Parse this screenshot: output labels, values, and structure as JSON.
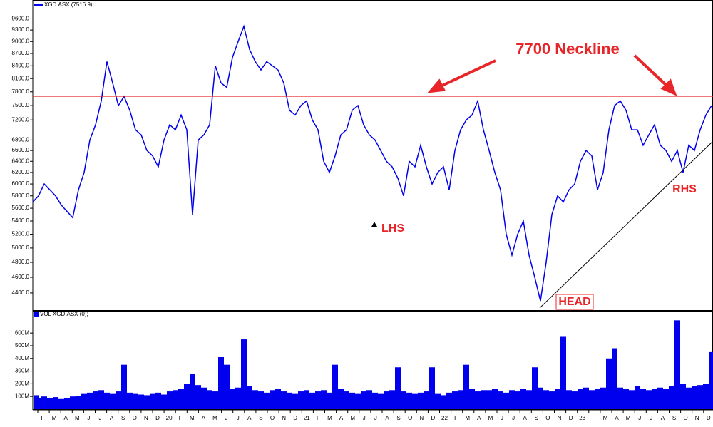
{
  "chart_data": [
    {
      "type": "line",
      "series": [
        {
          "name": "XGD.ASX (7516.9);",
          "color": "#0000ee",
          "values": [
            5700,
            5800,
            6000,
            5900,
            5800,
            5650,
            5550,
            5450,
            5900,
            6200,
            6800,
            7100,
            7600,
            8500,
            8000,
            7500,
            7700,
            7400,
            7000,
            6900,
            6600,
            6500,
            6300,
            6800,
            7100,
            7000,
            7300,
            7000,
            5500,
            6800,
            6900,
            7100,
            8400,
            8000,
            7900,
            8600,
            9000,
            9400,
            8800,
            8500,
            8300,
            8500,
            8400,
            8300,
            8000,
            7400,
            7300,
            7500,
            7600,
            7200,
            7000,
            6400,
            6200,
            6500,
            6900,
            7000,
            7400,
            7500,
            7100,
            6900,
            6800,
            6600,
            6400,
            6300,
            6100,
            5800,
            6400,
            6300,
            6700,
            6300,
            6000,
            6200,
            6300,
            5900,
            6600,
            7000,
            7200,
            7300,
            7600,
            7000,
            6600,
            6200,
            5900,
            5200,
            4900,
            5200,
            5400,
            4900,
            4600,
            4300,
            4800,
            5500,
            5800,
            5700,
            5900,
            6000,
            6400,
            6600,
            6500,
            5900,
            6200,
            7000,
            7500,
            7600,
            7400,
            7000,
            7000,
            6700,
            6900,
            7100,
            6700,
            6600,
            6400,
            6600,
            6200,
            6700,
            6600,
            7000,
            7300,
            7500
          ]
        }
      ],
      "ylim": [
        4190,
        10130
      ],
      "log_scale": true,
      "yticks": [
        {
          "value": 9600,
          "label": "9600.0"
        },
        {
          "value": 9300,
          "label": "9300.0"
        },
        {
          "value": 9000,
          "label": "9000.0"
        },
        {
          "value": 8700,
          "label": "8700.0"
        },
        {
          "value": 8400,
          "label": "8400.0"
        },
        {
          "value": 8100,
          "label": "8100.0"
        },
        {
          "value": 7800,
          "label": "7800.0"
        },
        {
          "value": 7500,
          "label": "7500.0"
        },
        {
          "value": 7200,
          "label": "7200.0"
        },
        {
          "value": 6800,
          "label": "6800.0"
        },
        {
          "value": 6600,
          "label": "6600.0"
        },
        {
          "value": 6400,
          "label": "6400.0"
        },
        {
          "value": 6200,
          "label": "6200.0"
        },
        {
          "value": 6000,
          "label": "6000.0"
        },
        {
          "value": 5800,
          "label": "5800.0"
        },
        {
          "value": 5600,
          "label": "5600.0"
        },
        {
          "value": 5400,
          "label": "5400.0"
        },
        {
          "value": 5200,
          "label": "5200.0"
        },
        {
          "value": 5000,
          "label": "5000.0"
        },
        {
          "value": 4800,
          "label": "4800.0"
        },
        {
          "value": 4600,
          "label": "4600.0"
        },
        {
          "value": 4400,
          "label": "4400.0"
        }
      ],
      "neckline": 7700,
      "neckline_color": "#e8262a",
      "annotations": [
        "7700 Neckline",
        "LHS",
        "HEAD",
        "RHS"
      ]
    },
    {
      "type": "bar",
      "series": [
        {
          "name": "VOL XGD.ASX (0);",
          "color": "#0000ee",
          "values": [
            110,
            90,
            100,
            85,
            95,
            80,
            90,
            100,
            105,
            120,
            130,
            140,
            150,
            130,
            120,
            140,
            350,
            130,
            120,
            115,
            110,
            120,
            130,
            115,
            140,
            150,
            160,
            200,
            280,
            190,
            170,
            150,
            140,
            410,
            350,
            160,
            170,
            550,
            180,
            150,
            140,
            130,
            150,
            160,
            140,
            130,
            120,
            140,
            150,
            130,
            140,
            150,
            130,
            350,
            160,
            140,
            130,
            120,
            140,
            150,
            130,
            120,
            140,
            150,
            330,
            140,
            130,
            120,
            130,
            140,
            330,
            120,
            110,
            130,
            140,
            150,
            350,
            160,
            140,
            150,
            150,
            160,
            140,
            130,
            150,
            140,
            160,
            150,
            330,
            170,
            150,
            140,
            160,
            570,
            150,
            140,
            160,
            170,
            150,
            160,
            170,
            400,
            480,
            170,
            160,
            150,
            180,
            160,
            150,
            160,
            170,
            160,
            180,
            700,
            200,
            170,
            180,
            190,
            200,
            450
          ]
        }
      ],
      "ylim": [
        0,
        775
      ],
      "yticks": [
        {
          "value": 600,
          "label": "600M"
        },
        {
          "value": 500,
          "label": "500M"
        },
        {
          "value": 400,
          "label": "400M"
        },
        {
          "value": 300,
          "label": "300M"
        },
        {
          "value": 200,
          "label": "200M"
        },
        {
          "value": 100,
          "label": "100M"
        }
      ],
      "x_tick_labels": [
        "F",
        "M",
        "A",
        "M",
        "J",
        "J",
        "A",
        "S",
        "O",
        "N",
        "D",
        "20",
        "F",
        "M",
        "A",
        "M",
        "J",
        "J",
        "A",
        "S",
        "O",
        "N",
        "D",
        "21",
        "F",
        "M",
        "A",
        "M",
        "J",
        "J",
        "A",
        "S",
        "O",
        "N",
        "D",
        "22",
        "F",
        "M",
        "A",
        "M",
        "J",
        "J",
        "A",
        "S",
        "O",
        "N",
        "D",
        "23",
        "F",
        "M",
        "A",
        "M",
        "J",
        "J",
        "A",
        "S",
        "O",
        "N",
        "D"
      ]
    }
  ]
}
